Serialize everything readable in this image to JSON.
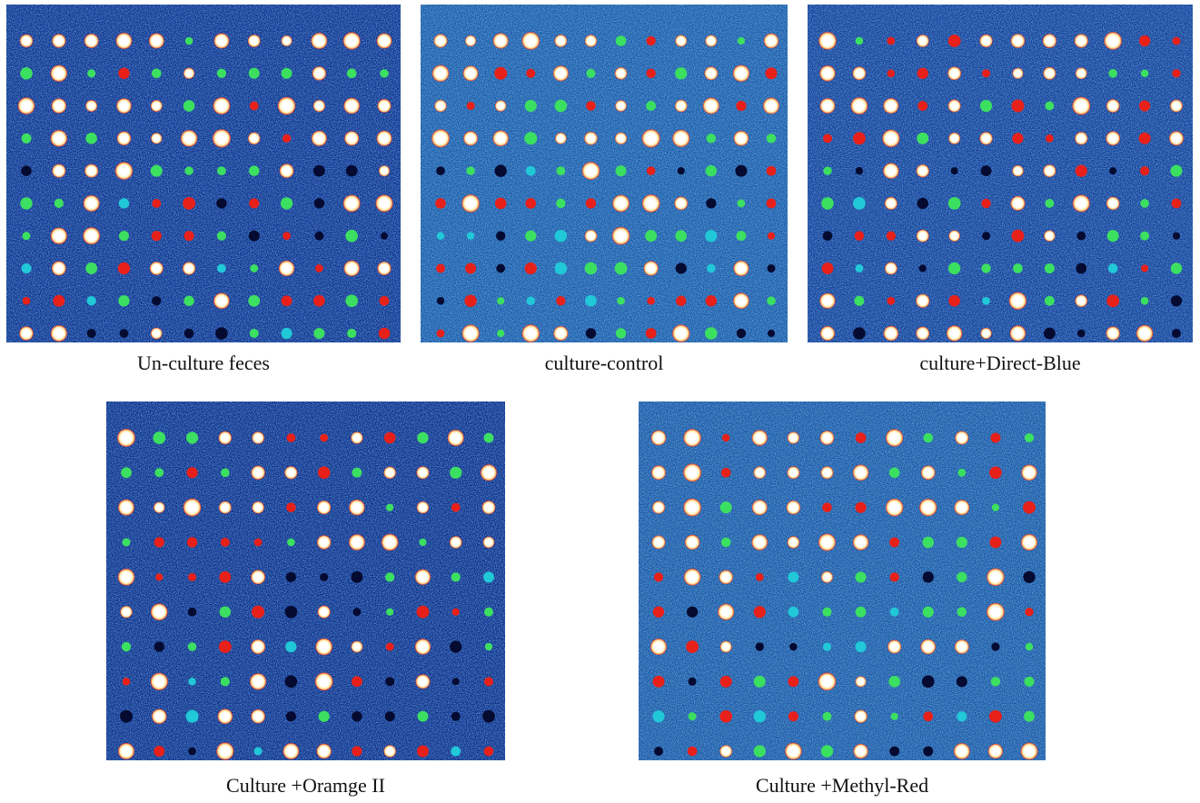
{
  "panels": [
    {
      "caption": "Un-culture feces"
    },
    {
      "caption": "culture-control"
    },
    {
      "caption": "culture+Direct-Blue"
    },
    {
      "caption": "Culture +Oramge II"
    },
    {
      "caption": "Culture +Methyl-Red"
    }
  ]
}
